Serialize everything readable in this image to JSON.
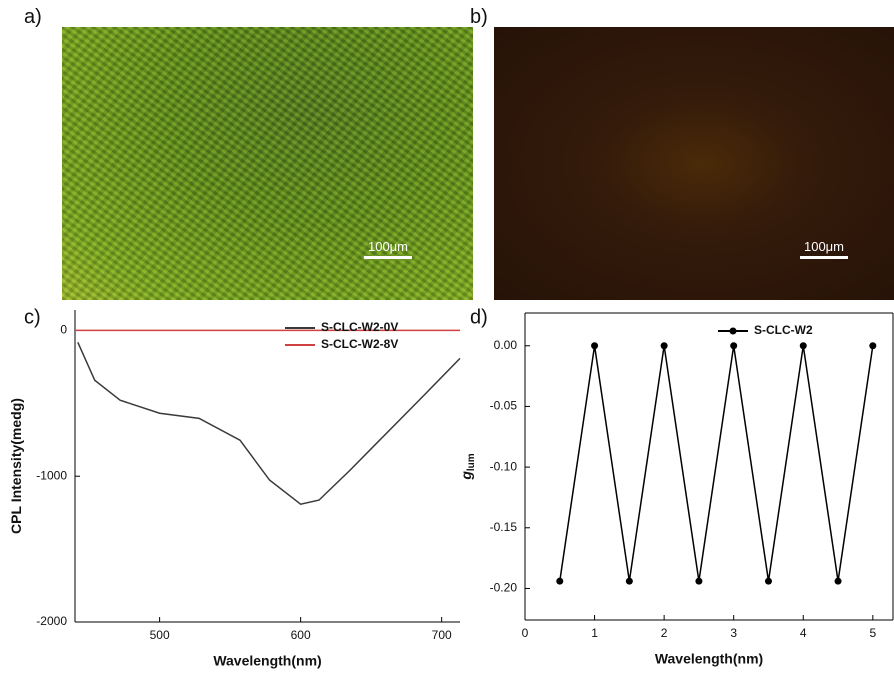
{
  "panels": [
    {
      "label": "a)",
      "scale_bar": "100μm"
    },
    {
      "label": "b)",
      "scale_bar": "100μm"
    }
  ],
  "chart_data": [
    {
      "type": "line",
      "label": "c)",
      "xlabel": "Wavelength(nm)",
      "ylabel": "CPL Intensity(medg)",
      "xlim": [
        440,
        713
      ],
      "ylim": [
        -2000,
        140
      ],
      "xticks": [
        500,
        600,
        700
      ],
      "yticks": [
        -2000,
        -1000,
        0
      ],
      "legend": "upper right",
      "markers": false,
      "series": [
        {
          "name": "S-CLC-W2-0V",
          "color": "#3a3a3a",
          "x": [
            442,
            454,
            472,
            500,
            528,
            557,
            578,
            600,
            613,
            635,
            656,
            684,
            713
          ],
          "values": [
            -82,
            -342,
            -479,
            -568,
            -603,
            -753,
            -1027,
            -1192,
            -1164,
            -959,
            -753,
            -479,
            -192
          ]
        },
        {
          "name": "S-CLC-W2-8V",
          "color": "#d04040",
          "x": [
            440,
            500,
            560,
            620,
            680,
            713
          ],
          "values": [
            0,
            0,
            0,
            0,
            0,
            0
          ]
        }
      ]
    },
    {
      "type": "line",
      "label": "d)",
      "xlabel": "Wavelength(nm)",
      "ylabel": "g",
      "ylabel_sub": "lum",
      "xlim": [
        0,
        5.29
      ],
      "ylim": [
        -0.226,
        0.027
      ],
      "xticks": [
        0,
        1,
        2,
        3,
        4,
        5
      ],
      "yticks": [
        {
          "value": -0.2,
          "label": "-0.20"
        },
        {
          "value": -0.15,
          "label": "-0.15"
        },
        {
          "value": -0.1,
          "label": "-0.10"
        },
        {
          "value": -0.05,
          "label": "-0.05"
        },
        {
          "value": 0,
          "label": "0.00"
        }
      ],
      "legend": "upper right",
      "markers": true,
      "series": [
        {
          "name": "S-CLC-W2",
          "color": "#000000",
          "x": [
            0.5,
            1,
            1.5,
            2,
            2.5,
            3,
            3.5,
            4,
            4.5,
            5
          ],
          "values": [
            -0.194,
            0,
            -0.194,
            0,
            -0.194,
            0,
            -0.194,
            0,
            -0.194,
            0
          ]
        }
      ]
    }
  ]
}
